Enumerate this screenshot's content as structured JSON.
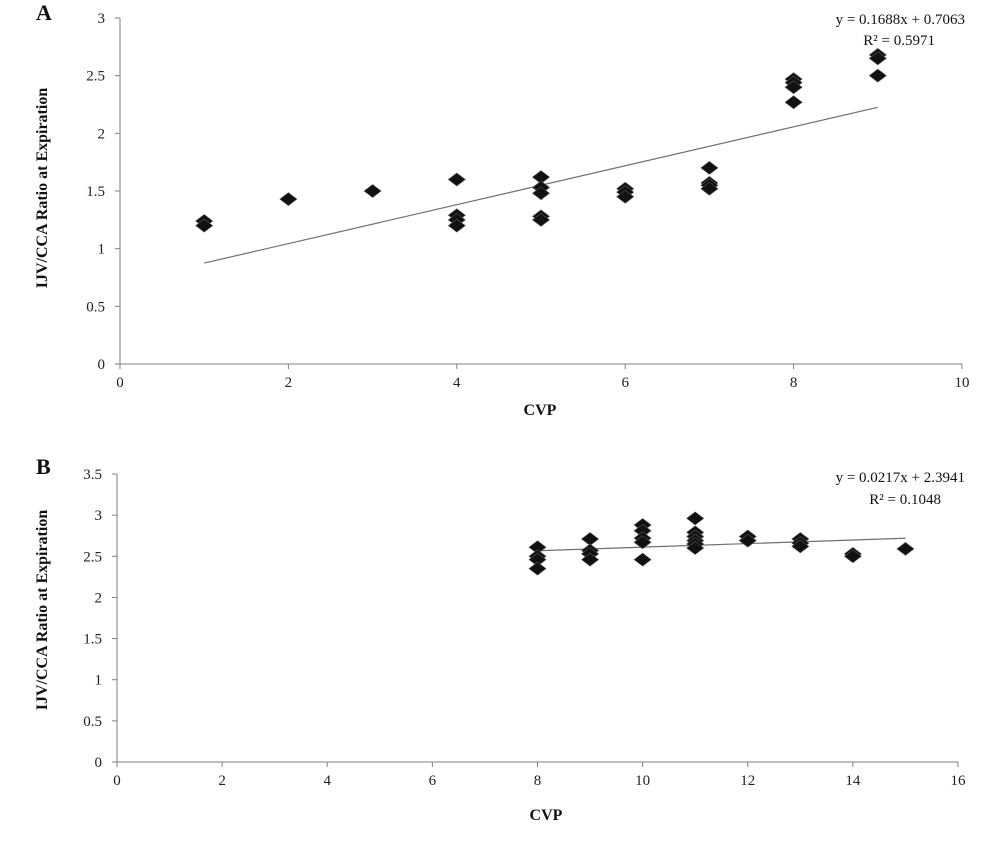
{
  "chart_data": [
    {
      "panel": "A",
      "type": "scatter",
      "xlabel": "CVP",
      "ylabel": "IJV/CCA Ratio at Expiration",
      "xlim": [
        0,
        10
      ],
      "ylim": [
        0,
        3
      ],
      "xticks": [
        "0",
        "2",
        "4",
        "6",
        "8",
        "10"
      ],
      "yticks": [
        "0",
        "0.5",
        "1",
        "1.5",
        "2",
        "2.5",
        "3"
      ],
      "equation": "y = 0.1688x + 0.7063",
      "r2_label": "R² = 0.5971",
      "trendline": {
        "slope": 0.1688,
        "intercept": 0.7063,
        "x_range": [
          1,
          9
        ]
      },
      "marker_color": "#111111",
      "points": [
        [
          1,
          1.24
        ],
        [
          1,
          1.2
        ],
        [
          2,
          1.43
        ],
        [
          3,
          1.5
        ],
        [
          4,
          1.6
        ],
        [
          4,
          1.29
        ],
        [
          4,
          1.25
        ],
        [
          4,
          1.2
        ],
        [
          5,
          1.62
        ],
        [
          5,
          1.53
        ],
        [
          5,
          1.48
        ],
        [
          5,
          1.28
        ],
        [
          5,
          1.25
        ],
        [
          6,
          1.52
        ],
        [
          6,
          1.49
        ],
        [
          6,
          1.45
        ],
        [
          7,
          1.7
        ],
        [
          7,
          1.57
        ],
        [
          7,
          1.55
        ],
        [
          7,
          1.52
        ],
        [
          8,
          2.47
        ],
        [
          8,
          2.44
        ],
        [
          8,
          2.4
        ],
        [
          8,
          2.27
        ],
        [
          9,
          2.68
        ],
        [
          9,
          2.65
        ],
        [
          9,
          2.5
        ]
      ]
    },
    {
      "panel": "B",
      "type": "scatter",
      "xlabel": "CVP",
      "ylabel": "IJV/CCA Ratio at Expiration",
      "xlim": [
        0,
        16
      ],
      "ylim": [
        0,
        3.5
      ],
      "xticks": [
        "0",
        "2",
        "4",
        "6",
        "8",
        "10",
        "12",
        "14",
        "16"
      ],
      "yticks": [
        "0",
        "0.5",
        "1",
        "1.5",
        "2",
        "2.5",
        "3",
        "3.5"
      ],
      "equation": "y = 0.0217x + 2.3941",
      "r2_label": "R² = 0.1048",
      "trendline": {
        "slope": 0.0217,
        "intercept": 2.3941,
        "x_range": [
          8,
          15
        ]
      },
      "marker_color": "#111111",
      "points": [
        [
          8,
          2.61
        ],
        [
          8,
          2.5
        ],
        [
          8,
          2.46
        ],
        [
          8,
          2.35
        ],
        [
          9,
          2.71
        ],
        [
          9,
          2.57
        ],
        [
          9,
          2.53
        ],
        [
          9,
          2.46
        ],
        [
          10,
          2.88
        ],
        [
          10,
          2.81
        ],
        [
          10,
          2.72
        ],
        [
          10,
          2.67
        ],
        [
          10,
          2.46
        ],
        [
          11,
          2.96
        ],
        [
          11,
          2.79
        ],
        [
          11,
          2.74
        ],
        [
          11,
          2.69
        ],
        [
          11,
          2.65
        ],
        [
          11,
          2.6
        ],
        [
          12,
          2.74
        ],
        [
          12,
          2.69
        ],
        [
          13,
          2.71
        ],
        [
          13,
          2.66
        ],
        [
          13,
          2.62
        ],
        [
          14,
          2.53
        ],
        [
          14,
          2.5
        ],
        [
          15,
          2.59
        ]
      ]
    }
  ]
}
